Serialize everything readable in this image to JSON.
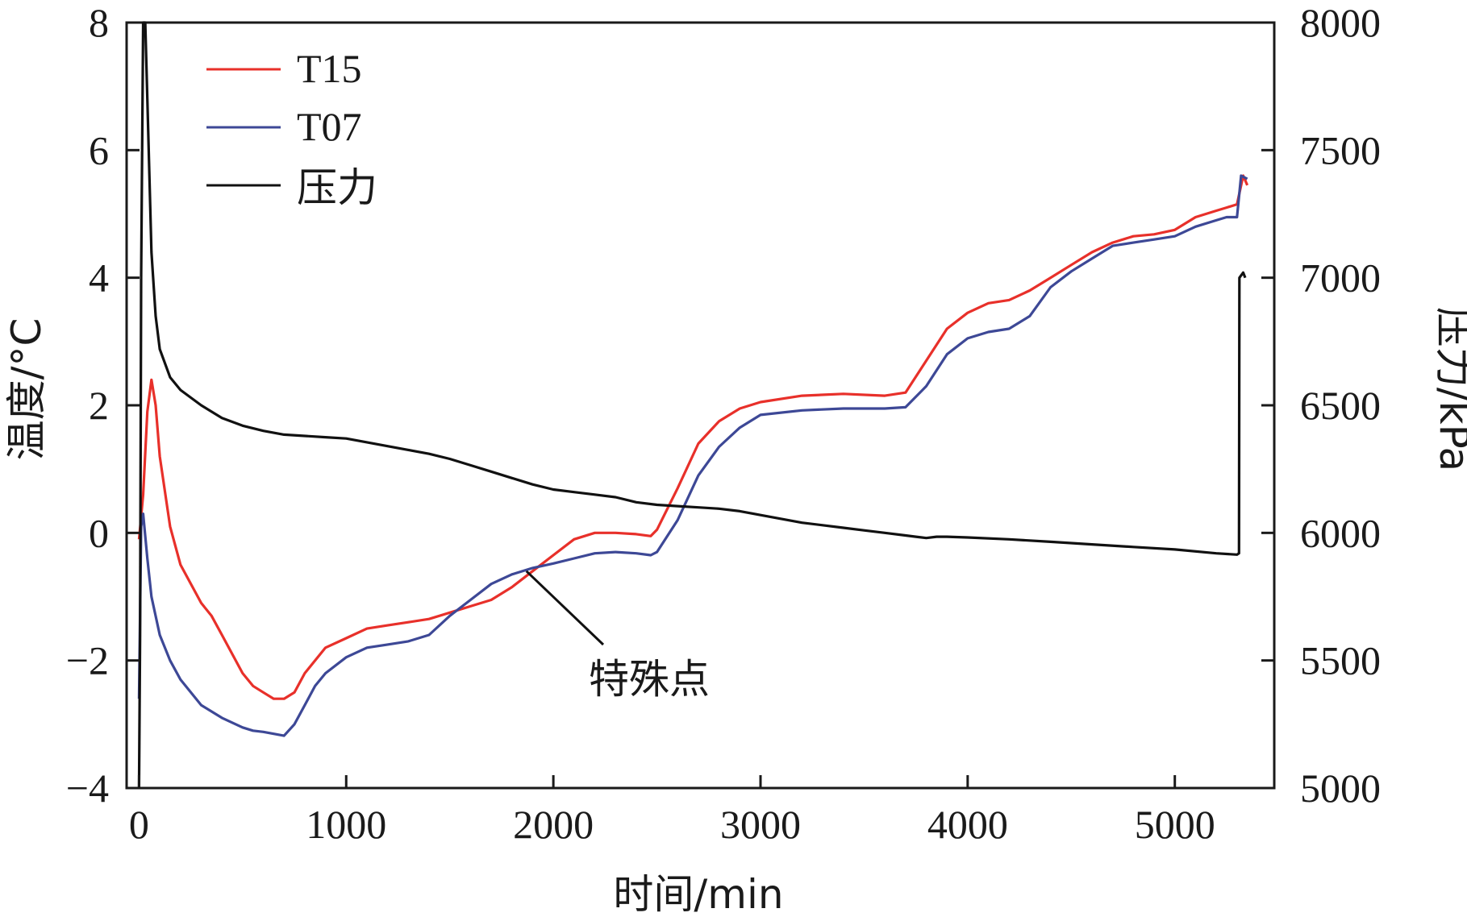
{
  "chart_data": {
    "type": "line",
    "title": "",
    "xlabel": "时间/min",
    "ylabel_left": "温度/°C",
    "ylabel_right": "压力/kPa",
    "xlim": [
      -60,
      5480
    ],
    "ylim_left": [
      -4,
      8
    ],
    "ylim_right": [
      5000,
      8000
    ],
    "x_ticks": [
      0,
      1000,
      2000,
      3000,
      4000,
      5000
    ],
    "x_tick_labels": [
      "0",
      "1000",
      "2000",
      "3000",
      "4000",
      "5000"
    ],
    "y_left_ticks": [
      -4,
      -2,
      0,
      2,
      4,
      6,
      8
    ],
    "y_left_tick_labels": [
      "−4",
      "−2",
      "0",
      "2",
      "4",
      "6",
      "8"
    ],
    "y_right_ticks": [
      5000,
      5500,
      6000,
      6500,
      7000,
      7500,
      8000
    ],
    "y_right_tick_labels": [
      "5000",
      "5500",
      "6000",
      "6500",
      "7000",
      "7500",
      "8000"
    ],
    "grid": false,
    "legend_position": "top-left",
    "series": [
      {
        "name": "T15",
        "axis": "left",
        "color": "#e8302a",
        "x": [
          0,
          20,
          40,
          60,
          80,
          100,
          150,
          200,
          300,
          350,
          400,
          450,
          500,
          550,
          600,
          650,
          700,
          750,
          800,
          900,
          1000,
          1100,
          1200,
          1300,
          1400,
          1500,
          1600,
          1700,
          1800,
          1900,
          2000,
          2100,
          2200,
          2300,
          2400,
          2470,
          2500,
          2600,
          2700,
          2800,
          2900,
          3000,
          3200,
          3400,
          3600,
          3700,
          3800,
          3900,
          4000,
          4100,
          4200,
          4300,
          4400,
          4500,
          4600,
          4700,
          4800,
          4900,
          5000,
          5100,
          5200,
          5250,
          5300,
          5330,
          5350
        ],
        "values": [
          -0.1,
          0.6,
          1.9,
          2.4,
          2.0,
          1.2,
          0.1,
          -0.5,
          -1.1,
          -1.3,
          -1.6,
          -1.9,
          -2.2,
          -2.4,
          -2.5,
          -2.6,
          -2.6,
          -2.5,
          -2.2,
          -1.8,
          -1.65,
          -1.5,
          -1.45,
          -1.4,
          -1.35,
          -1.25,
          -1.15,
          -1.05,
          -0.85,
          -0.6,
          -0.35,
          -0.1,
          0.0,
          0.0,
          -0.02,
          -0.05,
          0.05,
          0.7,
          1.4,
          1.75,
          1.95,
          2.05,
          2.15,
          2.18,
          2.15,
          2.2,
          2.7,
          3.2,
          3.45,
          3.6,
          3.65,
          3.8,
          4.0,
          4.2,
          4.4,
          4.55,
          4.65,
          4.68,
          4.75,
          4.95,
          5.05,
          5.1,
          5.15,
          5.6,
          5.45
        ]
      },
      {
        "name": "T07",
        "axis": "left",
        "color": "#3d4896",
        "x": [
          0,
          10,
          20,
          40,
          60,
          100,
          150,
          200,
          300,
          400,
          500,
          550,
          600,
          650,
          700,
          750,
          800,
          850,
          900,
          1000,
          1100,
          1200,
          1300,
          1400,
          1500,
          1600,
          1700,
          1800,
          1900,
          2000,
          2100,
          2200,
          2300,
          2400,
          2470,
          2500,
          2600,
          2700,
          2800,
          2900,
          3000,
          3200,
          3400,
          3600,
          3700,
          3800,
          3900,
          4000,
          4100,
          4200,
          4300,
          4400,
          4500,
          4600,
          4700,
          4800,
          4900,
          5000,
          5100,
          5200,
          5250,
          5300,
          5320,
          5350
        ],
        "values": [
          -2.6,
          0.1,
          0.3,
          -0.4,
          -1.0,
          -1.6,
          -2.0,
          -2.3,
          -2.7,
          -2.9,
          -3.05,
          -3.1,
          -3.12,
          -3.15,
          -3.18,
          -3.0,
          -2.7,
          -2.4,
          -2.2,
          -1.95,
          -1.8,
          -1.75,
          -1.7,
          -1.6,
          -1.3,
          -1.05,
          -0.8,
          -0.65,
          -0.55,
          -0.48,
          -0.4,
          -0.32,
          -0.3,
          -0.32,
          -0.35,
          -0.3,
          0.2,
          0.9,
          1.35,
          1.65,
          1.85,
          1.92,
          1.95,
          1.95,
          1.97,
          2.3,
          2.8,
          3.05,
          3.15,
          3.2,
          3.4,
          3.85,
          4.1,
          4.3,
          4.5,
          4.55,
          4.6,
          4.65,
          4.8,
          4.9,
          4.95,
          4.95,
          5.6,
          5.55
        ]
      },
      {
        "name": "压力",
        "axis": "right",
        "color": "#111111",
        "x": [
          0,
          5,
          10,
          20,
          30,
          40,
          60,
          80,
          100,
          150,
          200,
          300,
          400,
          500,
          600,
          700,
          800,
          900,
          1000,
          1100,
          1200,
          1300,
          1400,
          1500,
          1600,
          1700,
          1800,
          1900,
          2000,
          2100,
          2200,
          2300,
          2400,
          2500,
          2600,
          2700,
          2800,
          2900,
          3000,
          3100,
          3200,
          3300,
          3400,
          3500,
          3600,
          3700,
          3750,
          3800,
          3850,
          3900,
          4000,
          4200,
          4400,
          4600,
          4800,
          5000,
          5200,
          5300,
          5310,
          5312,
          5330,
          5340
        ],
        "y": [
          5000,
          5600,
          7000,
          8000,
          8000,
          7700,
          7100,
          6850,
          6720,
          6610,
          6560,
          6500,
          6450,
          6420,
          6400,
          6385,
          6380,
          6375,
          6370,
          6355,
          6340,
          6325,
          6310,
          6290,
          6265,
          6240,
          6215,
          6190,
          6170,
          6160,
          6150,
          6140,
          6120,
          6110,
          6105,
          6100,
          6095,
          6085,
          6070,
          6055,
          6040,
          6030,
          6020,
          6010,
          6000,
          5990,
          5985,
          5980,
          5985,
          5985,
          5982,
          5975,
          5965,
          5955,
          5945,
          5935,
          5920,
          5915,
          5920,
          7000,
          7020,
          7000
        ]
      }
    ],
    "legend": [
      "T15",
      "T07",
      "压力"
    ],
    "annotations": [
      {
        "text": "特殊点",
        "target_x": 1870,
        "target_y_left": -0.6
      }
    ]
  }
}
